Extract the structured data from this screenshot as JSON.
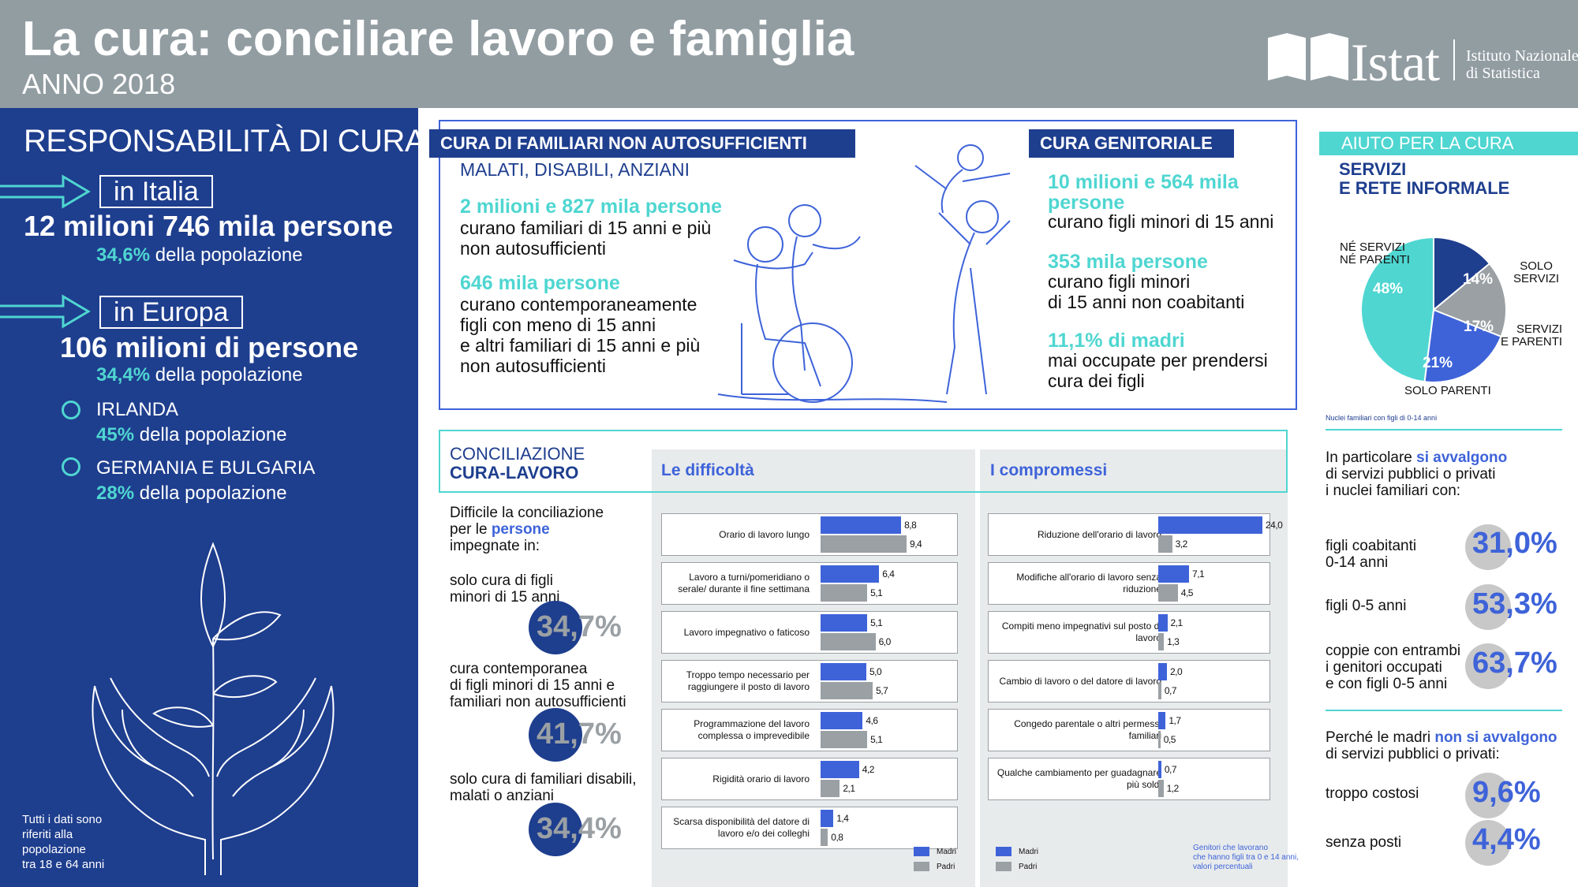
{
  "header": {
    "title": "La cura: conciliare lavoro e famiglia",
    "year": "ANNO 2018",
    "logo_word": "Istat",
    "logo_sub_1": "Istituto Nazionale",
    "logo_sub_2": "di Statistica"
  },
  "left": {
    "title": "RESPONSABILITÀ DI CURA",
    "italia_label": "in Italia",
    "italia_big": "12 milioni 746 mila persone",
    "italia_pct": "34,6%",
    "italia_pct_text": " della popolazione",
    "europa_label": "in Europa",
    "europa_big": "106 milioni di persone",
    "europa_pct": "34,4%",
    "europa_pct_text": " della popolazione",
    "c1_name": "IRLANDA",
    "c1_pct": "45%",
    "c1_text": " della popolazione",
    "c2_name": "GERMANIA E BULGARIA",
    "c2_pct": "28%",
    "c2_text": " della popolazione",
    "footnote": [
      "Tutti i dati sono",
      "riferiti alla",
      "popolazione",
      "tra 18 e 64 anni"
    ]
  },
  "familiari": {
    "tag": "CURA DI FAMILIARI NON AUTOSUFFICIENTI",
    "sub": "MALATI, DISABILI, ANZIANI",
    "s1_head": "2 milioni e 827 mila persone",
    "s1_text": [
      "curano familiari di 15 anni e più",
      "non autosufficienti"
    ],
    "s2_head": "646 mila persone",
    "s2_text": [
      "curano contemporaneamente",
      "figli con meno di 15 anni",
      "e altri familiari di 15 anni e più",
      "non autosufficienti"
    ]
  },
  "genitoriale": {
    "tag": "CURA GENITORIALE",
    "s1_head": [
      "10 milioni e 564 mila",
      "persone"
    ],
    "s1_text": "curano figli minori di 15 anni",
    "s2_head": "353 mila persone",
    "s2_text": [
      "curano figli minori",
      "di 15 anni non coabitanti"
    ],
    "s3_head": "11,1% di madri",
    "s3_text": [
      "mai occupate per prendersi",
      "cura dei figli"
    ]
  },
  "aiuto": {
    "tag": "AIUTO PER LA CURA",
    "title": [
      "SERVIZI",
      "E RETE INFORMALE"
    ],
    "pie_note": "Nuclei familiari con figli di 0-14 anni",
    "pie": [
      {
        "label": [
          "SOLO",
          "SERVIZI"
        ],
        "value": 14,
        "text": "14%",
        "color": "#1e3e8e"
      },
      {
        "label": [
          "SERVIZI",
          "E PARENTI"
        ],
        "value": 17,
        "text": "17%",
        "color": "#9aa0a4"
      },
      {
        "label": [
          "SOLO PARENTI"
        ],
        "value": 21,
        "text": "21%",
        "color": "#3e63d9"
      },
      {
        "label": [
          "NÉ SERVIZI",
          "NÉ PARENTI"
        ],
        "value": 48,
        "text": "48%",
        "color": "#4fd6d1"
      }
    ],
    "intro_1": "In particolare ",
    "intro_2": "si avvalgono",
    "intro_3": [
      "di servizi pubblici o privati",
      "i nuclei familiari con:"
    ],
    "items": [
      {
        "label": [
          "figli coabitanti",
          "0-14 anni"
        ],
        "pct": "31,0%"
      },
      {
        "label": [
          "figli 0-5 anni"
        ],
        "pct": "53,3%"
      },
      {
        "label": [
          "coppie con entrambi",
          "i genitori occupati",
          "e con figli 0-5 anni"
        ],
        "pct": "63,7%"
      }
    ],
    "why_1": "Perché le madri ",
    "why_2": "non si avvalgono",
    "why_3": "di servizi pubblici o privati:",
    "reasons": [
      {
        "label": "troppo costosi",
        "pct": "9,6%"
      },
      {
        "label": "senza posti",
        "pct": "4,4%"
      }
    ]
  },
  "conciliazione": {
    "tag1": "CONCILIAZIONE",
    "tag2": "CURA-LAVORO",
    "intro_1": [
      "Difficile la conciliazione",
      "per le "
    ],
    "intro_2": "persone",
    "intro_3": "impegnate in:",
    "items": [
      {
        "label": [
          "solo cura di figli",
          "minori di 15 anni"
        ],
        "pct": "34,7%"
      },
      {
        "label": [
          "cura contemporanea",
          "di figli minori di 15 anni e",
          "familiari non autosufficienti"
        ],
        "pct": "41,7%"
      },
      {
        "label": [
          "solo cura di familiari disabili,",
          "malati o anziani"
        ],
        "pct": "34,4%"
      }
    ]
  },
  "chart_data": [
    {
      "type": "bar",
      "title": "Le difficoltà",
      "categories": [
        "Orario di lavoro lungo",
        "Lavoro a turni/pomeridiano o serale/ durante il fine settimana",
        "Lavoro impegnativo o faticoso",
        "Troppo tempo necessario per raggiungere il posto di lavoro",
        "Programmazione del lavoro complessa o imprevedibile",
        "Rigidità orario di lavoro",
        "Scarsa disponibilità del datore di lavoro e/o dei colleghi"
      ],
      "series": [
        {
          "name": "Madri",
          "values": [
            8.8,
            6.4,
            5.1,
            5.0,
            4.6,
            4.2,
            1.4
          ],
          "labels": [
            "8,8",
            "6,4",
            "5,1",
            "5,0",
            "4,6",
            "4,2",
            "1,4"
          ],
          "color": "#3e63d9"
        },
        {
          "name": "Padri",
          "values": [
            9.4,
            5.1,
            6.0,
            5.7,
            5.1,
            2.1,
            0.8
          ],
          "labels": [
            "9,4",
            "5,1",
            "6,0",
            "5,7",
            "5,1",
            "2,1",
            "0,8"
          ],
          "color": "#9aa0a4"
        }
      ]
    },
    {
      "type": "bar",
      "title": "I compromessi",
      "categories": [
        "Riduzione dell'orario di lavoro",
        "Modifiche all'orario di lavoro senza riduzione",
        "Compiti meno impegnativi sul posto di lavoro",
        "Cambio di lavoro o del datore di lavoro",
        "Congedo parentale o altri permessi familiari",
        "Qualche cambiamento per guadagnare più soldi"
      ],
      "series": [
        {
          "name": "Madri",
          "values": [
            24.0,
            7.1,
            2.1,
            2.0,
            1.7,
            0.7
          ],
          "labels": [
            "24,0",
            "7,1",
            "2,1",
            "2,0",
            "1,7",
            "0,7"
          ],
          "color": "#3e63d9"
        },
        {
          "name": "Padri",
          "values": [
            3.2,
            4.5,
            1.3,
            0.7,
            0.5,
            1.2
          ],
          "labels": [
            "3,2",
            "4,5",
            "1,3",
            "0,7",
            "0,5",
            "1,2"
          ],
          "color": "#9aa0a4"
        }
      ],
      "note": [
        "Genitori che lavorano",
        "che hanno figli tra 0 e 14 anni,",
        "valori percentuali"
      ]
    }
  ]
}
